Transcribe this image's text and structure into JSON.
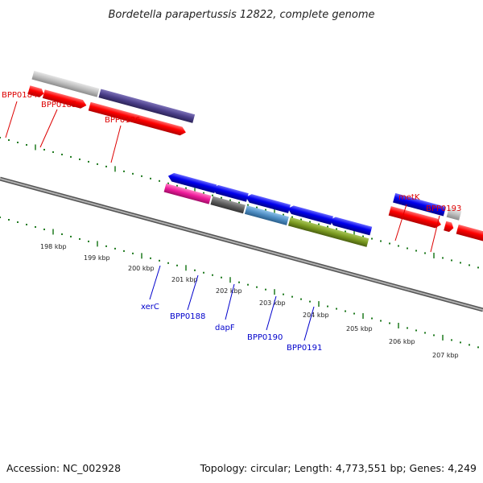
{
  "title": "Bordetella parapertussis 12822, complete genome",
  "footer": {
    "accession": "Accession: NC_002928",
    "summary": "Topology: circular; Length: 4,773,551 bp; Genes: 4,249"
  },
  "ruler_ticks": [
    "198 kbp",
    "199 kbp",
    "200 kbp",
    "201 kbp",
    "202 kbp",
    "203 kbp",
    "204 kbp",
    "205 kbp",
    "206 kbp",
    "207 kbp"
  ],
  "genes_top": [
    "BPP0184",
    "BPP0185",
    "BPP0186",
    "metK",
    "BPP0193"
  ],
  "genes_bottom": [
    "xerC",
    "BPP0188",
    "dapF",
    "BPP0190",
    "BPP0191"
  ],
  "colors": {
    "backbone": "#7a7a7a",
    "tick": "#1f7a1f",
    "red_gene": "#ff0000",
    "blue_gene": "#0000ee",
    "gray_gene": "#b5b5b5",
    "purple_gene": "#4b3f8a",
    "magenta_gene": "#ee1a9a",
    "dark_gray_gene": "#5f5f5f",
    "steel_gene": "#4f8ec4",
    "olive_gene": "#7a9a20",
    "label_top": "#dd0000",
    "label_bottom": "#0000cc"
  }
}
